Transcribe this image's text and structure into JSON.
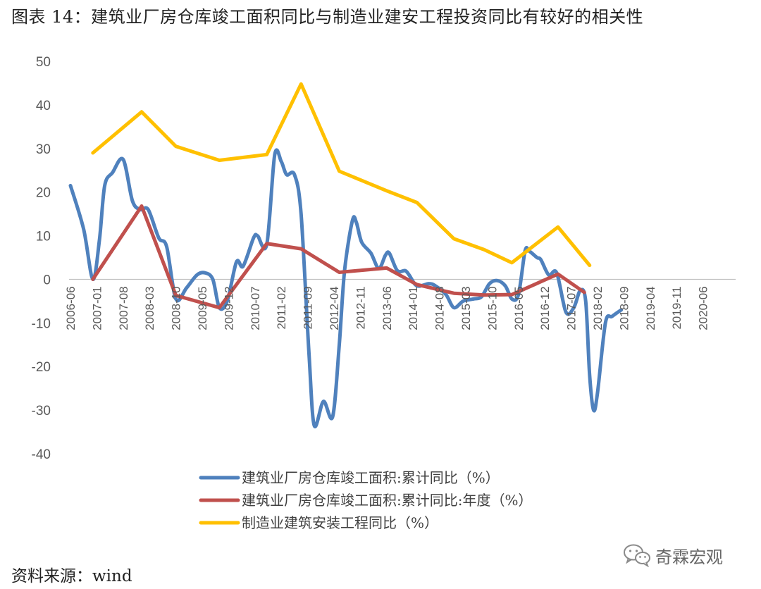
{
  "title": "图表 14：建筑业厂房仓库竣工面积同比与制造业建安工程投资同比有较好的相关性",
  "source": "资料来源：wind",
  "watermark": {
    "text": "奇霖宏观",
    "icon": "wechat-logo-icon"
  },
  "chart_data": {
    "type": "line",
    "ylim": [
      -40,
      50
    ],
    "y_ticks": [
      50,
      40,
      30,
      20,
      10,
      0,
      -10,
      -20,
      -30,
      -40
    ],
    "x_tick_labels": [
      "2006-06",
      "2007-01",
      "2007-08",
      "2008-03",
      "2008-10",
      "2009-05",
      "2009-12",
      "2010-07",
      "2011-02",
      "2011-09",
      "2012-04",
      "2012-11",
      "2013-06",
      "2014-01",
      "2014-08",
      "2015-03",
      "2015-10",
      "2016-05",
      "2016-12",
      "2017-07",
      "2018-02",
      "2018-09",
      "2019-04",
      "2019-11",
      "2020-06"
    ],
    "grid": false,
    "legend_position": "bottom",
    "series": [
      {
        "name": "建筑业厂房仓库竣工面积:累计同比（%）",
        "color": "#4F81BD",
        "points": [
          [
            0,
            21.5
          ],
          [
            0.5,
            11.5
          ],
          [
            0.85,
            0
          ],
          [
            1.1,
            9
          ],
          [
            1.3,
            21.5
          ],
          [
            1.6,
            24.5
          ],
          [
            2.0,
            27.5
          ],
          [
            2.35,
            18
          ],
          [
            2.65,
            16
          ],
          [
            2.95,
            16
          ],
          [
            3.35,
            9.5
          ],
          [
            3.65,
            7.5
          ],
          [
            4.0,
            -4.5
          ],
          [
            4.4,
            -2
          ],
          [
            4.8,
            1
          ],
          [
            5.1,
            1.5
          ],
          [
            5.4,
            0
          ],
          [
            5.65,
            -6.5
          ],
          [
            5.95,
            -5
          ],
          [
            6.3,
            4
          ],
          [
            6.55,
            3
          ],
          [
            6.95,
            9.5
          ],
          [
            7.1,
            10
          ],
          [
            7.45,
            8
          ],
          [
            7.75,
            28.5
          ],
          [
            8.0,
            27
          ],
          [
            8.2,
            24
          ],
          [
            8.5,
            24
          ],
          [
            8.75,
            15
          ],
          [
            9.05,
            -17
          ],
          [
            9.25,
            -33.5
          ],
          [
            9.6,
            -28
          ],
          [
            9.95,
            -31.5
          ],
          [
            10.2,
            -15
          ],
          [
            10.4,
            2
          ],
          [
            10.7,
            13.5
          ],
          [
            10.85,
            13
          ],
          [
            11.05,
            8.5
          ],
          [
            11.4,
            6
          ],
          [
            11.7,
            2.5
          ],
          [
            11.95,
            5.5
          ],
          [
            12.1,
            6
          ],
          [
            12.4,
            2
          ],
          [
            12.7,
            2
          ],
          [
            12.85,
            1
          ],
          [
            13.15,
            -1.5
          ],
          [
            13.6,
            -1
          ],
          [
            13.85,
            -1.5
          ],
          [
            14.25,
            -3.5
          ],
          [
            14.55,
            -6.5
          ],
          [
            14.9,
            -5
          ],
          [
            15.3,
            -4.5
          ],
          [
            15.6,
            -4
          ],
          [
            15.9,
            -1
          ],
          [
            16.2,
            -0.3
          ],
          [
            16.5,
            -1.5
          ],
          [
            16.75,
            -4.5
          ],
          [
            17.0,
            -3.5
          ],
          [
            17.25,
            6.5
          ],
          [
            17.4,
            6.5
          ],
          [
            17.7,
            5
          ],
          [
            17.85,
            4.5
          ],
          [
            18.15,
            1
          ],
          [
            18.45,
            1.5
          ],
          [
            18.8,
            -7.5
          ],
          [
            19.1,
            -6.5
          ],
          [
            19.35,
            -2.5
          ],
          [
            19.55,
            -5
          ],
          [
            19.7,
            -22
          ],
          [
            19.85,
            -30
          ],
          [
            20.0,
            -26
          ],
          [
            20.3,
            -10
          ],
          [
            20.55,
            -8.5
          ],
          [
            20.9,
            -7
          ]
        ]
      },
      {
        "name": "建筑业厂房仓库竣工面积:累计同比:年度（%）",
        "color": "#C0504D",
        "points": [
          [
            0.85,
            0
          ],
          [
            2.7,
            16.8
          ],
          [
            4.0,
            -3.7
          ],
          [
            5.65,
            -6.5
          ],
          [
            7.45,
            8.2
          ],
          [
            8.75,
            7
          ],
          [
            10.2,
            1.6
          ],
          [
            12.0,
            2.6
          ],
          [
            13.15,
            -1.2
          ],
          [
            14.55,
            -3.2
          ],
          [
            15.7,
            -3.6
          ],
          [
            16.75,
            -3.5
          ],
          [
            18.5,
            1.2
          ],
          [
            19.5,
            -3
          ]
        ]
      },
      {
        "name": "制造业建筑安装工程同比（%）",
        "color": "#FFC000",
        "points": [
          [
            0.85,
            29
          ],
          [
            2.7,
            38.4
          ],
          [
            4.0,
            30.5
          ],
          [
            5.65,
            27.3
          ],
          [
            7.45,
            28.6
          ],
          [
            8.75,
            44.8
          ],
          [
            10.2,
            24.8
          ],
          [
            12.0,
            20.3
          ],
          [
            13.15,
            17.6
          ],
          [
            14.55,
            9.3
          ],
          [
            15.7,
            6.8
          ],
          [
            16.75,
            3.8
          ],
          [
            18.5,
            12
          ],
          [
            19.7,
            3.2
          ]
        ]
      }
    ]
  }
}
